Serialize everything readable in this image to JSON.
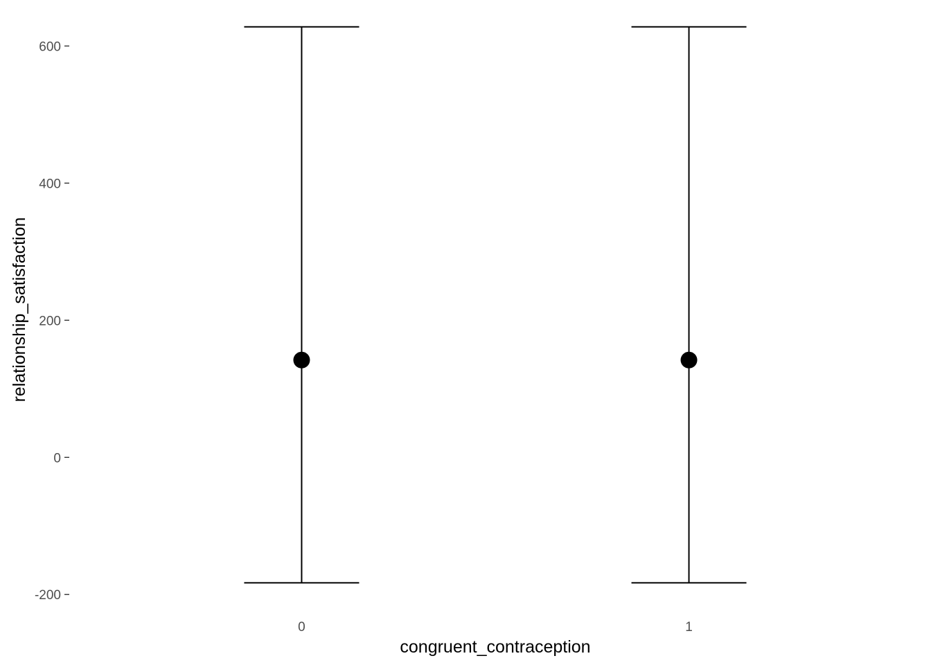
{
  "chart_data": {
    "type": "errorbar",
    "title": "",
    "xlabel": "congruent_contraception",
    "ylabel": "relationship_satisfaction",
    "categories": [
      "0",
      "1"
    ],
    "series": [
      {
        "values": [
          142,
          142
        ],
        "lower": [
          -183,
          -183
        ],
        "upper": [
          628,
          628
        ]
      }
    ],
    "ylim": [
      -222,
      657
    ],
    "yticks": [
      -200,
      0,
      200,
      400,
      600
    ],
    "ytick_labels": [
      "-200",
      "0",
      "200",
      "400",
      "600"
    ],
    "grid": false,
    "legend": "none",
    "colors": {
      "mark": "#000000",
      "tick_text": "#4d4d4d",
      "axis_title": "#000000",
      "background": "#ffffff"
    }
  }
}
